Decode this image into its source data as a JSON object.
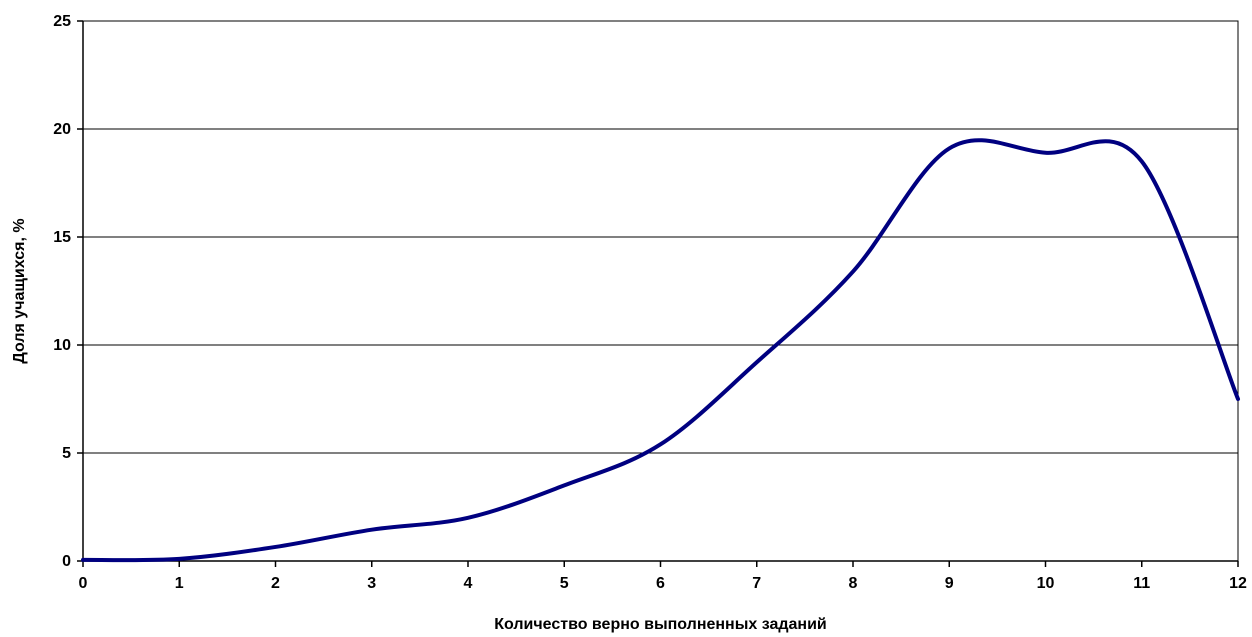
{
  "chart_data": {
    "type": "line",
    "title": "",
    "xlabel": "Количество верно выполненных заданий",
    "ylabel": "Доля учащихся, %",
    "xlim": [
      0,
      12
    ],
    "ylim": [
      0,
      25
    ],
    "x_ticks": [
      "0",
      "1",
      "2",
      "3",
      "4",
      "5",
      "6",
      "7",
      "8",
      "9",
      "10",
      "11",
      "12"
    ],
    "y_ticks": [
      "0",
      "5",
      "10",
      "15",
      "20",
      "25"
    ],
    "grid": true,
    "smooth": true,
    "series": [
      {
        "color": "#000080",
        "x": [
          0,
          1,
          2,
          3,
          4,
          5,
          6,
          7,
          8,
          9,
          10,
          11,
          12
        ],
        "y": [
          0.05,
          0.1,
          0.65,
          1.45,
          2.0,
          3.5,
          5.4,
          9.2,
          13.4,
          19.1,
          18.9,
          18.5,
          7.5
        ]
      }
    ]
  }
}
